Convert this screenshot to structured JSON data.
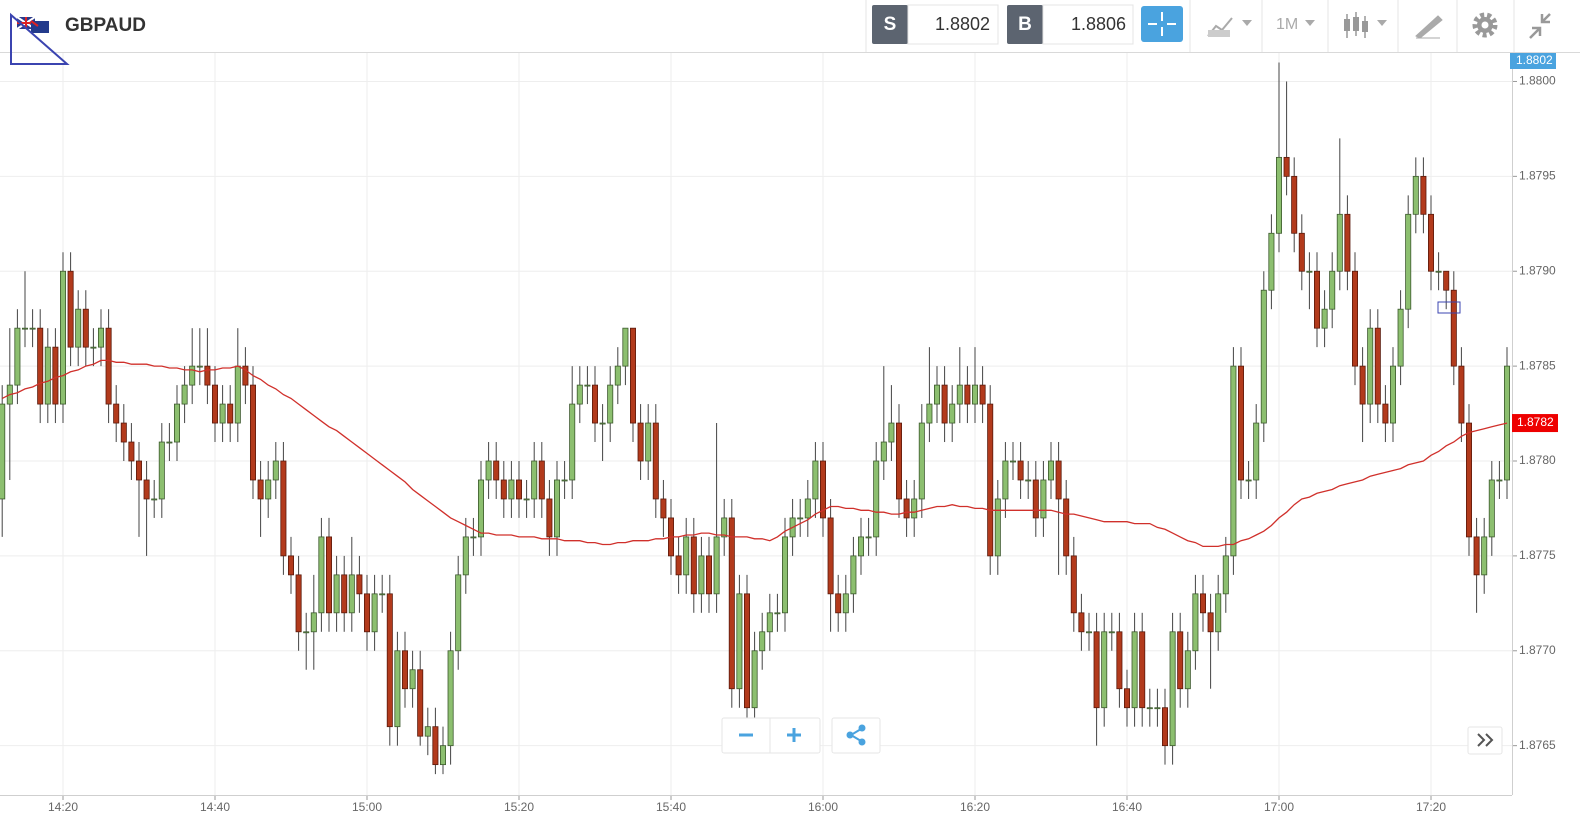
{
  "toolbar": {
    "symbol": "GBPAUD",
    "sell_label": "S",
    "sell": 1.8802,
    "buy_label": "B",
    "buy": 1.8806,
    "timeframe": "1M"
  },
  "chart_data": {
    "type": "candlestick",
    "up_color": "#8cbf6f",
    "down_color": "#b23a1c",
    "grid": true,
    "ylim": [
      1.87624,
      1.88015
    ],
    "yticks": [
      1.8765,
      {
        "value": 1.877,
        "label": "1.8770"
      },
      1.8775,
      {
        "value": 1.878,
        "label": "1.8780"
      },
      1.8785,
      {
        "value": 1.879,
        "label": "1.8790"
      },
      1.8795,
      {
        "value": 1.88,
        "label": "1.8800"
      }
    ],
    "current_price": 1.8802,
    "categories": [
      null,
      null,
      null,
      null,
      null,
      null,
      null,
      null,
      "14:20",
      null,
      null,
      null,
      null,
      null,
      null,
      null,
      null,
      null,
      null,
      null,
      null,
      null,
      null,
      null,
      null,
      null,
      null,
      null,
      "14:40",
      null,
      null,
      null,
      null,
      null,
      null,
      null,
      null,
      null,
      null,
      null,
      null,
      null,
      null,
      null,
      null,
      null,
      null,
      null,
      "15:00",
      null,
      null,
      null,
      null,
      null,
      null,
      null,
      null,
      null,
      null,
      null,
      null,
      null,
      null,
      null,
      null,
      null,
      null,
      null,
      "15:20",
      null,
      null,
      null,
      null,
      null,
      null,
      null,
      null,
      null,
      null,
      null,
      null,
      null,
      null,
      null,
      null,
      null,
      null,
      null,
      "15:40",
      null,
      null,
      null,
      null,
      null,
      null,
      null,
      null,
      null,
      null,
      null,
      null,
      null,
      null,
      null,
      null,
      null,
      null,
      null,
      "16:00",
      null,
      null,
      null,
      null,
      null,
      null,
      null,
      null,
      null,
      null,
      null,
      null,
      null,
      null,
      null,
      null,
      null,
      null,
      null,
      "16:20",
      null,
      null,
      null,
      null,
      null,
      null,
      null,
      null,
      null,
      null,
      null,
      null,
      null,
      null,
      null,
      null,
      null,
      null,
      null,
      "16:40",
      null,
      null,
      null,
      null,
      null,
      null,
      null,
      null,
      null,
      null,
      null,
      null,
      null,
      null,
      null,
      null,
      null,
      null,
      null,
      "17:00",
      null,
      null,
      null,
      null,
      null,
      null,
      null,
      null,
      null,
      null,
      null,
      null,
      null,
      null,
      null,
      null,
      null,
      null,
      null,
      "17:20",
      null,
      null,
      null,
      null,
      null,
      null,
      null,
      null,
      null,
      null
    ],
    "open": [
      1.8778,
      1.8783,
      1.8784,
      1.8787,
      1.8787,
      1.8787,
      1.8783,
      1.8786,
      1.8783,
      1.879,
      1.8786,
      1.8788,
      1.8786,
      1.8786,
      1.8787,
      1.8783,
      1.8782,
      1.8781,
      1.878,
      1.8779,
      1.8778,
      1.8778,
      1.8781,
      1.8781,
      1.8783,
      1.8784,
      1.8785,
      1.8785,
      1.8784,
      1.8782,
      1.8783,
      1.8782,
      1.8785,
      1.8784,
      1.8779,
      1.8778,
      1.8779,
      1.878,
      1.8775,
      1.8774,
      1.8771,
      1.8771,
      1.8772,
      1.8776,
      1.8772,
      1.8774,
      1.8772,
      1.8774,
      1.8773,
      1.8771,
      1.8773,
      1.8773,
      1.8766,
      1.877,
      1.8768,
      1.8769,
      1.87655,
      1.8766,
      1.8764,
      1.8765,
      1.877,
      1.8774,
      1.8776,
      1.8776,
      1.8779,
      1.878,
      1.8779,
      1.8778,
      1.8779,
      1.8778,
      1.8778,
      1.878,
      1.8778,
      1.8776,
      1.8779,
      1.8779,
      1.8783,
      1.8784,
      1.8784,
      1.8782,
      1.8782,
      1.8784,
      1.8785,
      1.8787,
      1.8782,
      1.878,
      1.8782,
      1.8778,
      1.8777,
      1.8775,
      1.8774,
      1.8776,
      1.8773,
      1.8775,
      1.8773,
      1.8776,
      1.8777,
      1.8768,
      1.8773,
      1.8767,
      1.877,
      1.8771,
      1.8772,
      1.8772,
      1.8776,
      1.8777,
      1.8777,
      1.8778,
      1.878,
      1.8777,
      1.8773,
      1.8772,
      1.8773,
      1.8775,
      1.8776,
      1.8776,
      1.878,
      1.8781,
      1.8782,
      1.8778,
      1.8777,
      1.8778,
      1.8782,
      1.8783,
      1.8784,
      1.8782,
      1.8783,
      1.8784,
      1.8783,
      1.8784,
      1.8783,
      1.8775,
      1.8778,
      1.878,
      1.878,
      1.8779,
      1.8779,
      1.8777,
      1.8779,
      1.878,
      1.8778,
      1.8775,
      1.8772,
      1.8771,
      1.8771,
      1.8767,
      1.8771,
      1.8771,
      1.8768,
      1.8767,
      1.8771,
      1.8767,
      1.8767,
      1.8767,
      1.8765,
      1.8771,
      1.8768,
      1.877,
      1.8773,
      1.8772,
      1.8771,
      1.8773,
      1.8775,
      1.8785,
      1.8779,
      1.8779,
      1.8782,
      1.8789,
      1.8792,
      1.8796,
      1.8795,
      1.8792,
      1.879,
      1.879,
      1.8787,
      1.8788,
      1.879,
      1.8793,
      1.879,
      1.8785,
      1.8783,
      1.8787,
      1.8783,
      1.8782,
      1.8785,
      1.8788,
      1.8793,
      1.8795,
      1.8793,
      1.879,
      1.879,
      1.8789,
      1.8785,
      1.8782,
      1.8776,
      1.8774,
      1.8776,
      1.8779,
      1.8779
    ],
    "high": [
      1.8784,
      1.8787,
      1.8788,
      1.879,
      1.8788,
      1.8788,
      1.8787,
      1.8787,
      1.8791,
      1.8791,
      1.8789,
      1.8789,
      1.8787,
      1.8788,
      1.8788,
      1.8784,
      1.8783,
      1.8782,
      1.8781,
      1.878,
      1.8779,
      1.8782,
      1.8782,
      1.8784,
      1.8785,
      1.8787,
      1.8787,
      1.8787,
      1.8785,
      1.8784,
      1.8784,
      1.8787,
      1.8786,
      1.8785,
      1.878,
      1.878,
      1.8781,
      1.8781,
      1.8776,
      1.8775,
      1.8772,
      1.8774,
      1.8777,
      1.8777,
      1.8775,
      1.8775,
      1.8776,
      1.8775,
      1.8774,
      1.8774,
      1.8774,
      1.8774,
      1.8771,
      1.8771,
      1.877,
      1.877,
      1.8767,
      1.8767,
      1.8766,
      1.8771,
      1.8775,
      1.8777,
      1.8777,
      1.878,
      1.8781,
      1.8781,
      1.878,
      1.878,
      1.878,
      1.8779,
      1.8781,
      1.8781,
      1.8779,
      1.878,
      1.878,
      1.8785,
      1.8785,
      1.8785,
      1.8785,
      1.8783,
      1.8785,
      1.8786,
      1.8787,
      1.8787,
      1.8783,
      1.8783,
      1.8783,
      1.8779,
      1.8778,
      1.8776,
      1.8777,
      1.8777,
      1.8776,
      1.8776,
      1.8782,
      1.8778,
      1.8778,
      1.8774,
      1.8774,
      1.8771,
      1.8772,
      1.8773,
      1.8773,
      1.8777,
      1.8778,
      1.8778,
      1.8779,
      1.8781,
      1.8781,
      1.8778,
      1.8774,
      1.8774,
      1.8776,
      1.8777,
      1.8777,
      1.8781,
      1.8785,
      1.8784,
      1.8783,
      1.8779,
      1.8779,
      1.8783,
      1.8786,
      1.8785,
      1.8785,
      1.8784,
      1.8786,
      1.8785,
      1.8786,
      1.8785,
      1.8784,
      1.8779,
      1.8781,
      1.8781,
      1.8781,
      1.878,
      1.878,
      1.878,
      1.8781,
      1.8781,
      1.8779,
      1.8776,
      1.8773,
      1.8772,
      1.8772,
      1.8772,
      1.8772,
      1.8772,
      1.8769,
      1.8772,
      1.8772,
      1.8768,
      1.8768,
      1.8768,
      1.8772,
      1.8772,
      1.8771,
      1.8774,
      1.8774,
      1.8773,
      1.8774,
      1.8776,
      1.8786,
      1.8786,
      1.878,
      1.8783,
      1.879,
      1.8793,
      1.8801,
      1.88,
      1.8796,
      1.8793,
      1.8791,
      1.8791,
      1.8789,
      1.8791,
      1.8797,
      1.8794,
      1.8791,
      1.8786,
      1.8788,
      1.8788,
      1.8784,
      1.8786,
      1.8789,
      1.8794,
      1.8796,
      1.8796,
      1.8794,
      1.8791,
      1.879,
      1.879,
      1.8786,
      1.8783,
      1.8777,
      1.8777,
      1.878,
      1.878,
      1.8786
    ],
    "low": [
      1.8776,
      1.8779,
      1.8783,
      1.8786,
      1.8786,
      1.8782,
      1.8782,
      1.8782,
      1.8782,
      1.8785,
      1.8785,
      1.8785,
      1.8785,
      1.8785,
      1.8782,
      1.8781,
      1.878,
      1.8779,
      1.8776,
      1.8775,
      1.8777,
      1.8777,
      1.878,
      1.878,
      1.8782,
      1.8783,
      1.8784,
      1.8783,
      1.8781,
      1.8781,
      1.8781,
      1.8781,
      1.8783,
      1.8778,
      1.8776,
      1.8777,
      1.8778,
      1.8774,
      1.8773,
      1.877,
      1.8769,
      1.8769,
      1.8771,
      1.8771,
      1.8771,
      1.8771,
      1.8771,
      1.8772,
      1.877,
      1.877,
      1.8772,
      1.8765,
      1.8765,
      1.8767,
      1.8767,
      1.8765,
      1.87645,
      1.87635,
      1.87635,
      1.8764,
      1.8769,
      1.8773,
      1.8775,
      1.8775,
      1.8778,
      1.8778,
      1.8777,
      1.8777,
      1.8777,
      1.8777,
      1.8777,
      1.8777,
      1.8775,
      1.8775,
      1.8778,
      1.8778,
      1.8782,
      1.8783,
      1.8781,
      1.878,
      1.8781,
      1.8783,
      1.8784,
      1.8781,
      1.8779,
      1.8779,
      1.8777,
      1.8776,
      1.8774,
      1.8773,
      1.8773,
      1.8772,
      1.8772,
      1.8772,
      1.8772,
      1.8775,
      1.8767,
      1.8767,
      1.8766,
      1.8766,
      1.8769,
      1.877,
      1.8771,
      1.8771,
      1.8775,
      1.8776,
      1.8776,
      1.8777,
      1.8776,
      1.8771,
      1.8771,
      1.8771,
      1.8772,
      1.8774,
      1.8775,
      1.8775,
      1.8779,
      1.878,
      1.8777,
      1.8776,
      1.8776,
      1.8777,
      1.8781,
      1.8782,
      1.8781,
      1.8781,
      1.8782,
      1.8782,
      1.8782,
      1.8782,
      1.8774,
      1.8774,
      1.8777,
      1.8779,
      1.8778,
      1.8778,
      1.8776,
      1.8776,
      1.8778,
      1.8774,
      1.8774,
      1.8771,
      1.877,
      1.877,
      1.8765,
      1.8766,
      1.877,
      1.8767,
      1.8766,
      1.8766,
      1.8766,
      1.8766,
      1.8766,
      1.8764,
      1.8764,
      1.8767,
      1.8767,
      1.8769,
      1.8771,
      1.8768,
      1.877,
      1.8772,
      1.8774,
      1.8778,
      1.8778,
      1.8778,
      1.8781,
      1.8788,
      1.8791,
      1.8794,
      1.8791,
      1.8789,
      1.8788,
      1.8786,
      1.8786,
      1.8787,
      1.8789,
      1.8789,
      1.8784,
      1.8781,
      1.8782,
      1.8782,
      1.8781,
      1.8781,
      1.8784,
      1.8787,
      1.8792,
      1.8792,
      1.8789,
      1.8789,
      1.8788,
      1.8784,
      1.8781,
      1.8775,
      1.8772,
      1.8773,
      1.8775,
      1.8778,
      1.8778
    ],
    "close": [
      1.8783,
      1.8784,
      1.8787,
      1.8787,
      1.8787,
      1.8783,
      1.8786,
      1.8783,
      1.879,
      1.8786,
      1.8788,
      1.8786,
      1.8786,
      1.8787,
      1.8783,
      1.8782,
      1.8781,
      1.878,
      1.8779,
      1.8778,
      1.8778,
      1.8781,
      1.8781,
      1.8783,
      1.8784,
      1.8785,
      1.8785,
      1.8784,
      1.8782,
      1.8783,
      1.8782,
      1.8785,
      1.8784,
      1.8779,
      1.8778,
      1.8779,
      1.878,
      1.8775,
      1.8774,
      1.8771,
      1.8771,
      1.8772,
      1.8776,
      1.8772,
      1.8774,
      1.8772,
      1.8774,
      1.8773,
      1.8771,
      1.8773,
      1.8773,
      1.8766,
      1.877,
      1.8768,
      1.8769,
      1.87655,
      1.8766,
      1.8764,
      1.8765,
      1.877,
      1.8774,
      1.8776,
      1.8776,
      1.8779,
      1.878,
      1.8779,
      1.8778,
      1.8779,
      1.8778,
      1.8778,
      1.878,
      1.8778,
      1.8776,
      1.8779,
      1.8779,
      1.8783,
      1.8784,
      1.8784,
      1.8782,
      1.8782,
      1.8784,
      1.8785,
      1.8787,
      1.8782,
      1.878,
      1.8782,
      1.8778,
      1.8777,
      1.8775,
      1.8774,
      1.8776,
      1.8773,
      1.8775,
      1.8773,
      1.8776,
      1.8777,
      1.8768,
      1.8773,
      1.8767,
      1.877,
      1.8771,
      1.8772,
      1.8772,
      1.8776,
      1.8777,
      1.8777,
      1.8778,
      1.878,
      1.8777,
      1.8773,
      1.8772,
      1.8773,
      1.8775,
      1.8776,
      1.8776,
      1.878,
      1.8781,
      1.8782,
      1.8778,
      1.8777,
      1.8778,
      1.8782,
      1.8783,
      1.8784,
      1.8782,
      1.8783,
      1.8784,
      1.8783,
      1.8784,
      1.8783,
      1.8775,
      1.8778,
      1.878,
      1.878,
      1.8779,
      1.8779,
      1.8777,
      1.8779,
      1.878,
      1.8778,
      1.8775,
      1.8772,
      1.8771,
      1.8771,
      1.8767,
      1.8771,
      1.8771,
      1.8768,
      1.8767,
      1.8771,
      1.8767,
      1.8767,
      1.8767,
      1.8765,
      1.8771,
      1.8768,
      1.877,
      1.8773,
      1.8772,
      1.8771,
      1.8773,
      1.8775,
      1.8785,
      1.8779,
      1.8779,
      1.8782,
      1.8789,
      1.8792,
      1.8796,
      1.8795,
      1.8792,
      1.879,
      1.879,
      1.8787,
      1.8788,
      1.879,
      1.8793,
      1.879,
      1.8785,
      1.8783,
      1.8787,
      1.8783,
      1.8782,
      1.8785,
      1.8788,
      1.8793,
      1.8795,
      1.8793,
      1.879,
      1.879,
      1.8789,
      1.8785,
      1.8782,
      1.8776,
      1.8774,
      1.8776,
      1.8779,
      1.8779,
      1.8785
    ],
    "ma": {
      "color": "#d0302b",
      "values": [
        1.87833,
        1.87835,
        1.87836,
        1.87838,
        1.87839,
        1.87841,
        1.87842,
        1.87844,
        1.87845,
        1.87847,
        1.87848,
        1.8785,
        1.87851,
        1.87853,
        1.87853,
        1.87852,
        1.87852,
        1.87851,
        1.87851,
        1.87851,
        1.8785,
        1.8785,
        1.87849,
        1.87849,
        1.87848,
        1.87848,
        1.87847,
        1.87848,
        1.87848,
        1.87849,
        1.87849,
        1.8785,
        1.87848,
        1.87845,
        1.87843,
        1.8784,
        1.87838,
        1.87835,
        1.87833,
        1.8783,
        1.87827,
        1.87824,
        1.87821,
        1.87818,
        1.87816,
        1.87813,
        1.8781,
        1.87807,
        1.87804,
        1.87801,
        1.87798,
        1.87795,
        1.87792,
        1.87789,
        1.87785,
        1.87782,
        1.87779,
        1.87776,
        1.87773,
        1.8777,
        1.87768,
        1.87766,
        1.87764,
        1.87762,
        1.87762,
        1.87761,
        1.87761,
        1.87761,
        1.8776,
        1.8776,
        1.8776,
        1.87759,
        1.87759,
        1.87759,
        1.87758,
        1.87758,
        1.87758,
        1.87757,
        1.87757,
        1.87756,
        1.87756,
        1.87757,
        1.87757,
        1.87758,
        1.87758,
        1.87758,
        1.87759,
        1.87759,
        1.8776,
        1.8776,
        1.87761,
        1.87761,
        1.87762,
        1.87762,
        1.87761,
        1.87761,
        1.8776,
        1.8776,
        1.8776,
        1.87759,
        1.87759,
        1.87758,
        1.8776,
        1.87763,
        1.87765,
        1.87767,
        1.87769,
        1.87772,
        1.87774,
        1.87776,
        1.87776,
        1.87775,
        1.87775,
        1.87774,
        1.87774,
        1.87773,
        1.87773,
        1.87772,
        1.87772,
        1.87773,
        1.87773,
        1.87774,
        1.87775,
        1.87776,
        1.87776,
        1.87777,
        1.87776,
        1.87776,
        1.87775,
        1.87775,
        1.87774,
        1.87774,
        1.87774,
        1.87774,
        1.87774,
        1.87774,
        1.87774,
        1.87774,
        1.87774,
        1.87773,
        1.87772,
        1.87772,
        1.87771,
        1.8777,
        1.87769,
        1.87768,
        1.87768,
        1.87768,
        1.87768,
        1.87767,
        1.87767,
        1.87767,
        1.87765,
        1.87764,
        1.87762,
        1.8776,
        1.87758,
        1.87757,
        1.87755,
        1.87755,
        1.87755,
        1.87756,
        1.87756,
        1.87758,
        1.87759,
        1.87761,
        1.87763,
        1.87766,
        1.8777,
        1.87773,
        1.87777,
        1.8778,
        1.87781,
        1.87783,
        1.87784,
        1.87785,
        1.87787,
        1.87788,
        1.87789,
        1.8779,
        1.87792,
        1.87793,
        1.87794,
        1.87795,
        1.87796,
        1.87798,
        1.87799,
        1.878,
        1.87803,
        1.87805,
        1.87808,
        1.8781,
        1.87813,
        1.87815,
        1.87816,
        1.87817,
        1.87818,
        1.87819,
        1.8782
      ]
    }
  }
}
